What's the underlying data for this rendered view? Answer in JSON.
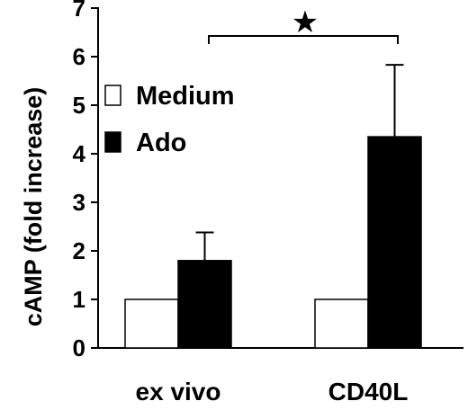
{
  "chart_data": {
    "type": "bar",
    "title": "",
    "xlabel": "",
    "ylabel": "cAMP (fold increase)",
    "ylim": [
      0,
      7
    ],
    "yticks": [
      "0",
      "1",
      "2",
      "3",
      "4",
      "5",
      "6",
      "7"
    ],
    "categories": [
      "ex vivo",
      "CD40L"
    ],
    "series": [
      {
        "name": "Medium",
        "values": [
          1.0,
          1.0
        ],
        "error": [
          0,
          0
        ],
        "color": "#ffffff"
      },
      {
        "name": "Ado",
        "values": [
          1.8,
          4.35
        ],
        "error": [
          0.58,
          1.48
        ],
        "color": "#000000"
      }
    ],
    "legend": "top-left",
    "grid": false,
    "annotation": {
      "type": "significance-bracket",
      "symbol": "★",
      "between": [
        "ex vivo",
        "CD40L"
      ]
    }
  }
}
